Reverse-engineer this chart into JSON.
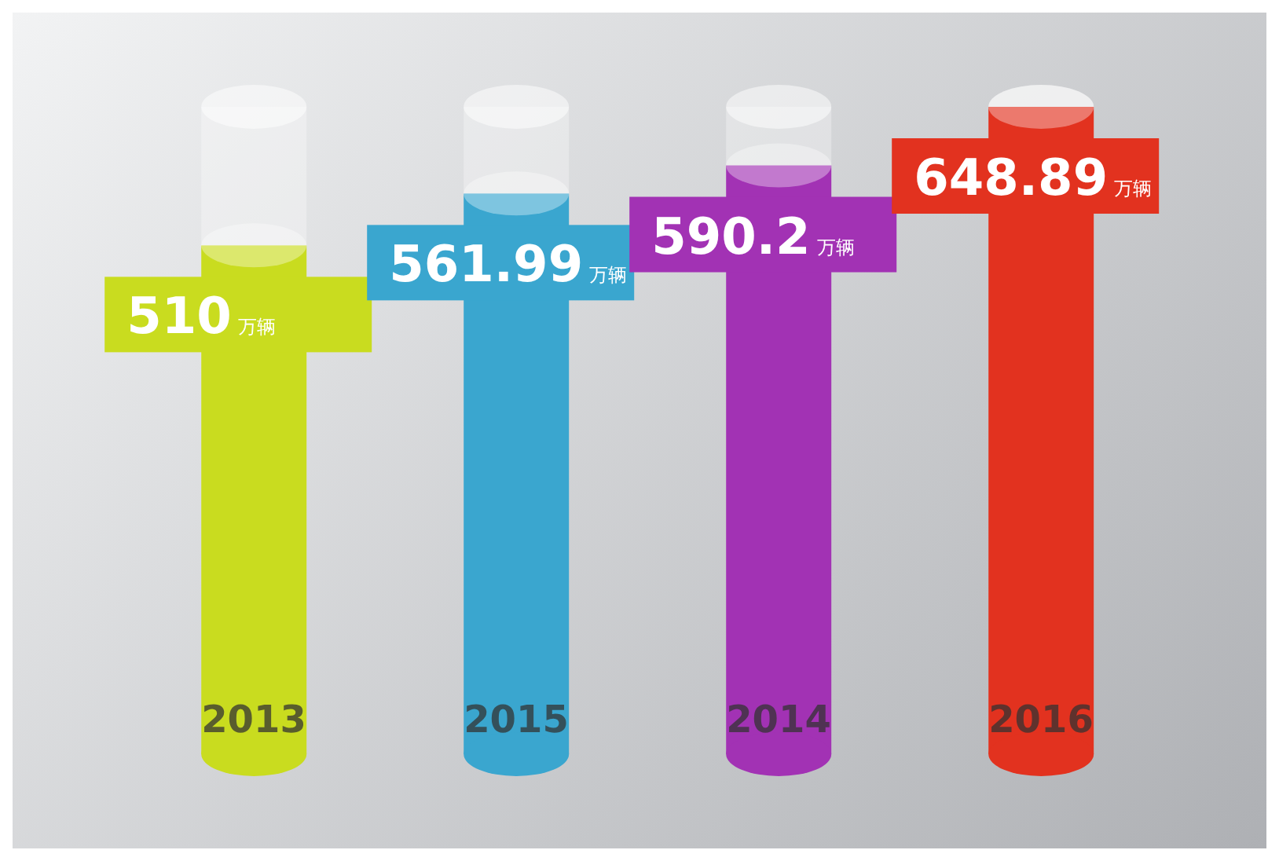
{
  "chart_data": {
    "type": "bar",
    "categories": [
      "2013",
      "2015",
      "2014",
      "2016"
    ],
    "values": [
      510,
      561.99,
      590.2,
      648.89
    ],
    "colors": [
      "#c9dc1f",
      "#3aa6cf",
      "#a232b4",
      "#e2321f"
    ],
    "value_labels": [
      "510万辆",
      "561.99万辆",
      "590.2万辆",
      "648.89万辆"
    ]
  }
}
